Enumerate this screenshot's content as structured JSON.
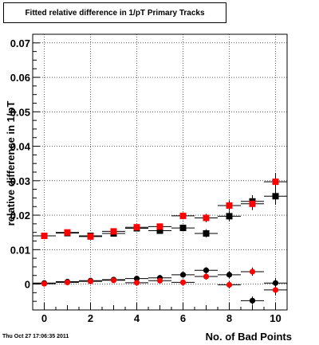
{
  "chart_data": {
    "type": "scatter",
    "title": "Fitted relative difference in 1/pT Primary Tracks",
    "xlabel": "No. of Bad Points",
    "ylabel": "relative difference in 1/pT",
    "xlim": [
      -0.5,
      10.5
    ],
    "ylim": [
      -0.0075,
      0.0725
    ],
    "x_ticks": [
      0,
      2,
      4,
      6,
      8,
      10
    ],
    "y_ticks": [
      0,
      0.01,
      0.02,
      0.03,
      0.04,
      0.05,
      0.06,
      0.07
    ],
    "y_tick_labels": [
      "0",
      "0.01",
      "0.02",
      "0.03",
      "0.04",
      "0.05",
      "0.06",
      "0.07"
    ],
    "grid": true,
    "colors": {
      "black": "#000000",
      "red": "#ff0000"
    },
    "series": [
      {
        "marker": "square",
        "color": "#000000",
        "x": [
          0,
          1,
          2,
          3,
          4,
          5,
          6,
          7,
          8,
          9,
          10
        ],
        "y": [
          0.014,
          0.0148,
          0.014,
          0.0147,
          0.0162,
          0.0155,
          0.0163,
          0.0147,
          0.0197,
          0.024,
          0.0255
        ],
        "yerr": [
          0.0006,
          0.0006,
          0.0006,
          0.0008,
          0.0008,
          0.0009,
          0.001,
          0.0012,
          0.0015,
          0.0018,
          0.0025
        ]
      },
      {
        "marker": "square",
        "color": "#ff0000",
        "x": [
          0,
          1,
          2,
          3,
          4,
          5,
          6,
          7,
          8,
          9,
          10
        ],
        "y": [
          0.014,
          0.015,
          0.0138,
          0.0153,
          0.0165,
          0.0167,
          0.0198,
          0.0192,
          0.0228,
          0.0233,
          0.0297
        ],
        "yerr": [
          0.0006,
          0.0006,
          0.0006,
          0.0008,
          0.0008,
          0.0009,
          0.001,
          0.0012,
          0.0015,
          0.0018,
          0.0025
        ]
      },
      {
        "marker": "circle",
        "color": "#000000",
        "x": [
          0,
          1,
          2,
          3,
          4,
          5,
          6,
          7,
          8,
          9,
          10
        ],
        "y": [
          0.0003,
          0.0007,
          0.001,
          0.0013,
          0.0016,
          0.0018,
          0.0027,
          0.004,
          0.0027,
          -0.0048,
          0.0003
        ],
        "yerr": [
          0.0004,
          0.0004,
          0.0005,
          0.0006,
          0.0006,
          0.0007,
          0.0008,
          0.0009,
          0.001,
          0.0012,
          0.0015
        ]
      },
      {
        "marker": "circle",
        "color": "#ff0000",
        "x": [
          0,
          1,
          2,
          3,
          4,
          5,
          6,
          7,
          8,
          9,
          10
        ],
        "y": [
          0.0001,
          0.0005,
          0.0008,
          0.0011,
          0.0004,
          0.001,
          0.0005,
          0.0022,
          -0.0002,
          0.0036,
          -0.0017
        ],
        "yerr": [
          0.0004,
          0.0004,
          0.0005,
          0.0006,
          0.0006,
          0.0007,
          0.0008,
          0.0009,
          0.001,
          0.0012,
          0.0015
        ]
      }
    ]
  },
  "footer": {
    "timestamp": "Thu Oct 27 17:06:35 2011"
  }
}
